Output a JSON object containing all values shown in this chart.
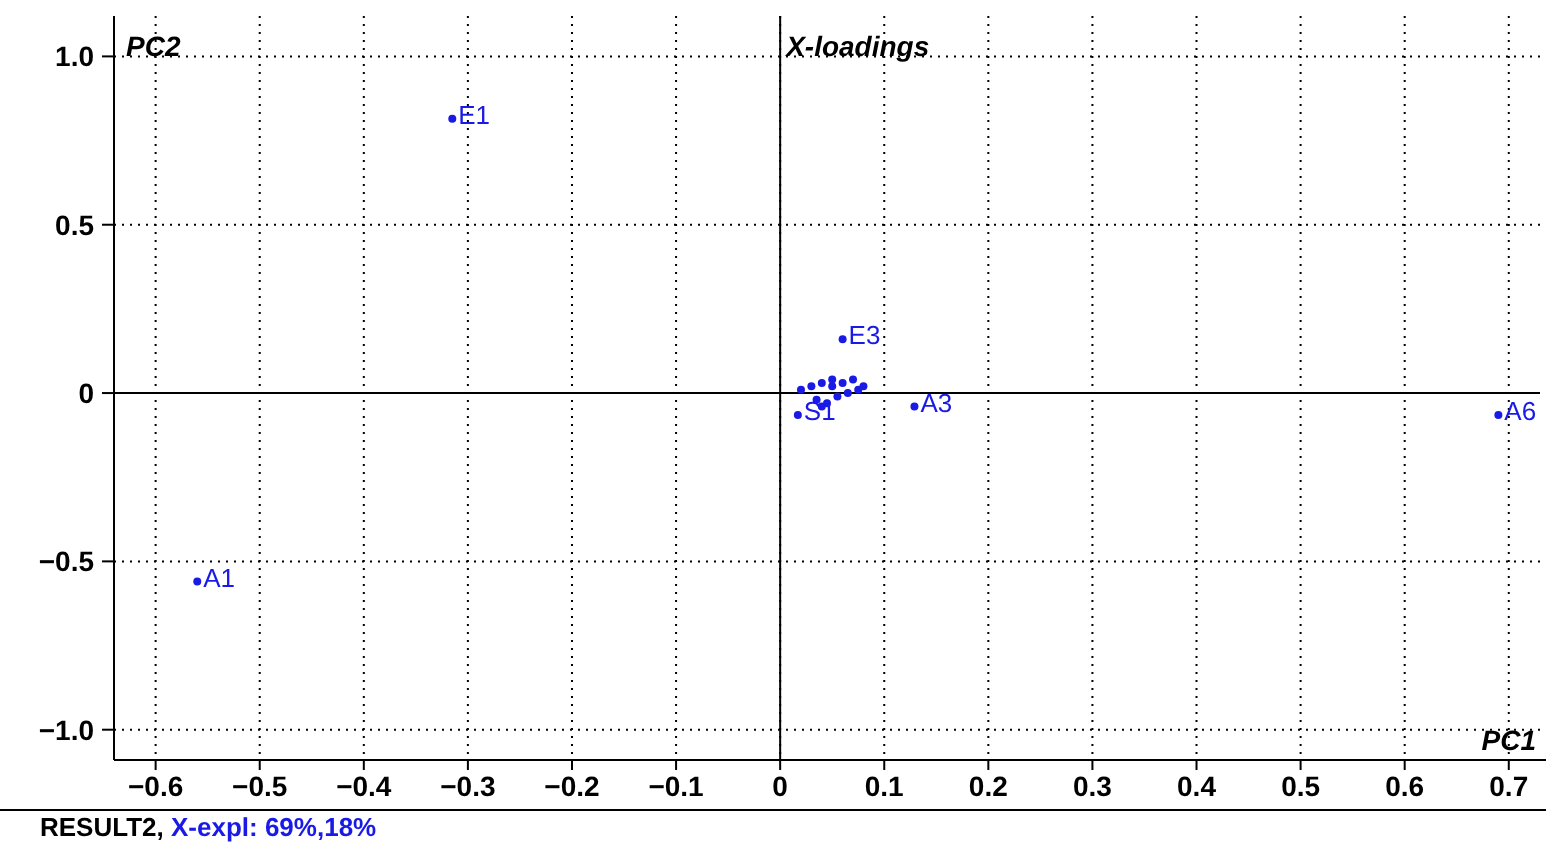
{
  "chart_data": {
    "type": "scatter",
    "title": "X-loadings",
    "subtitle": "X-expl: 69%,18%",
    "xlabel": "PC1",
    "ylabel": "PC2",
    "annotations": [
      "RESULT2,"
    ],
    "xlim": [
      -0.64,
      0.73
    ],
    "ylim": [
      -1.09,
      1.12
    ],
    "xticks": [
      {
        "value": -0.6,
        "label": "−0.6"
      },
      {
        "value": -0.5,
        "label": "−0.5"
      },
      {
        "value": -0.4,
        "label": "−0.4"
      },
      {
        "value": -0.3,
        "label": "−0.3"
      },
      {
        "value": -0.2,
        "label": "−0.2"
      },
      {
        "value": -0.1,
        "label": "−0.1"
      },
      0,
      0.1,
      0.2,
      0.3,
      0.4,
      0.5,
      0.6,
      0.7
    ],
    "yticks": [
      {
        "value": -1,
        "label": "−1.0"
      },
      {
        "value": -0.5,
        "label": "−0.5"
      },
      0,
      0.5,
      {
        "value": 1,
        "label": "1.0"
      }
    ],
    "grid": true,
    "marker": "circle",
    "series": [
      {
        "name": "E1",
        "color": "#1a1ae6",
        "x": [
          -0.315
        ],
        "values": [
          0.815
        ]
      },
      {
        "name": "A1",
        "color": "#1a1ae6",
        "x": [
          -0.56
        ],
        "values": [
          -0.56
        ]
      },
      {
        "name": "A6",
        "color": "#1a1ae6",
        "x": [
          0.69
        ],
        "values": [
          -0.065
        ]
      },
      {
        "name": "A3",
        "color": "#1a1ae6",
        "x": [
          0.129
        ],
        "values": [
          -0.04
        ]
      },
      {
        "name": "E3",
        "color": "#1a1ae6",
        "x": [
          0.06
        ],
        "values": [
          0.16
        ]
      },
      {
        "name": "S1",
        "color": "#1a1ae6",
        "x": [
          0.017
        ],
        "values": [
          -0.065
        ]
      },
      {
        "color": "#1a1ae6",
        "marker": "circle",
        "x": [
          0.02,
          0.03,
          0.04,
          0.05,
          0.06,
          0.07,
          0.08,
          0.035,
          0.045,
          0.055,
          0.065,
          0.075,
          0.04,
          0.05
        ],
        "values": [
          0.01,
          0.02,
          0.03,
          0.02,
          0.03,
          0.04,
          0.02,
          -0.02,
          -0.03,
          -0.01,
          0.0,
          0.01,
          -0.04,
          0.04
        ]
      }
    ]
  }
}
